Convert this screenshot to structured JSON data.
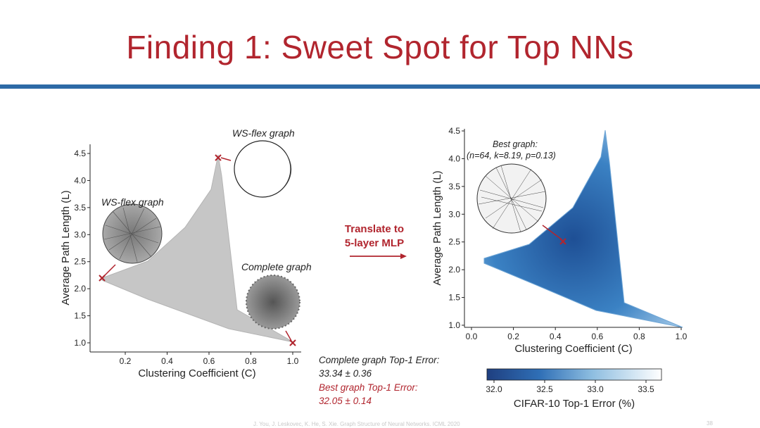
{
  "slide": {
    "title": "Finding 1: Sweet Spot for Top NNs",
    "citation": "J. You, J. Leskovec, K. He, S. Xie. Graph Structure of Neural Networks. ICML 2020",
    "page_number": "38"
  },
  "left_plot": {
    "xlabel": "Clustering Coefficient (C)",
    "ylabel": "Average Path Length (L)",
    "xticks": [
      "0.2",
      "0.4",
      "0.6",
      "0.8",
      "1.0"
    ],
    "yticks": [
      "1.0",
      "1.5",
      "2.0",
      "2.5",
      "3.0",
      "3.5",
      "4.0",
      "4.5"
    ],
    "xlim": [
      0.02,
      1.05
    ],
    "ylim": [
      0.9,
      4.65
    ],
    "annotations": {
      "ws_flex_top": "WS-flex graph",
      "ws_flex_left": "WS-flex graph",
      "complete_graph": "Complete graph"
    }
  },
  "middle": {
    "translate_line1": "Translate to",
    "translate_line2": "5-layer MLP"
  },
  "results": {
    "complete_label": "Complete graph Top-1 Error:",
    "complete_value": "33.34 ± 0.36",
    "best_label": "Best graph Top-1 Error:",
    "best_value": "32.05 ± 0.14"
  },
  "right_plot": {
    "xlabel": "Clustering Coefficient (C)",
    "ylabel": "Average Path Length (L)",
    "xticks": [
      "0.0",
      "0.2",
      "0.4",
      "0.6",
      "0.8",
      "1.0"
    ],
    "yticks": [
      "1.0",
      "1.5",
      "2.0",
      "2.5",
      "3.0",
      "3.5",
      "4.0",
      "4.5"
    ],
    "best_graph_title": "Best graph:",
    "best_graph_params": "(n=64, k=8.19, p=0.13)"
  },
  "colorbar": {
    "label": "CIFAR-10 Top-1 Error (%)",
    "ticks": [
      "32.0",
      "32.5",
      "33.0",
      "33.5"
    ],
    "range": [
      31.9,
      33.7
    ],
    "color_low": "#1f3f80",
    "color_high": "#ffffff"
  },
  "chart_data": [
    {
      "type": "scatter",
      "title": "",
      "xlabel": "Clustering Coefficient (C)",
      "ylabel": "Average Path Length (L)",
      "xlim": [
        0.02,
        1.05
      ],
      "ylim": [
        0.9,
        4.65
      ],
      "series": [
        {
          "name": "WS-flex graphs (region outline)",
          "x": [
            0.08,
            0.3,
            0.5,
            0.63,
            0.65,
            0.66,
            0.7,
            1.0,
            0.6,
            0.3,
            0.08
          ],
          "y": [
            2.12,
            2.45,
            3.1,
            4.0,
            4.4,
            4.05,
            1.4,
            1.0,
            1.25,
            1.75,
            2.05
          ]
        },
        {
          "name": "marked graphs",
          "x": [
            0.08,
            0.65,
            1.0
          ],
          "y": [
            2.12,
            4.42,
            1.0
          ],
          "labels": [
            "WS-flex graph",
            "WS-flex graph",
            "Complete graph"
          ]
        }
      ]
    },
    {
      "type": "scatter",
      "title": "",
      "xlabel": "Clustering Coefficient (C)",
      "ylabel": "Average Path Length (L)",
      "xlim": [
        0.0,
        1.0
      ],
      "ylim": [
        1.0,
        4.5
      ],
      "colorbar": {
        "label": "CIFAR-10 Top-1 Error (%)",
        "range": [
          31.9,
          33.7
        ]
      },
      "series": [
        {
          "name": "WS-flex graphs (region outline)",
          "x": [
            0.08,
            0.3,
            0.5,
            0.63,
            0.65,
            0.67,
            0.73,
            1.0,
            0.6,
            0.3,
            0.08
          ],
          "y": [
            2.18,
            2.45,
            3.1,
            4.0,
            4.45,
            4.0,
            1.4,
            1.0,
            1.25,
            1.75,
            2.12
          ]
        },
        {
          "name": "best graph",
          "x": [
            0.45
          ],
          "y": [
            2.45
          ],
          "label": "(n=64, k=8.19, p=0.13)"
        }
      ]
    }
  ]
}
